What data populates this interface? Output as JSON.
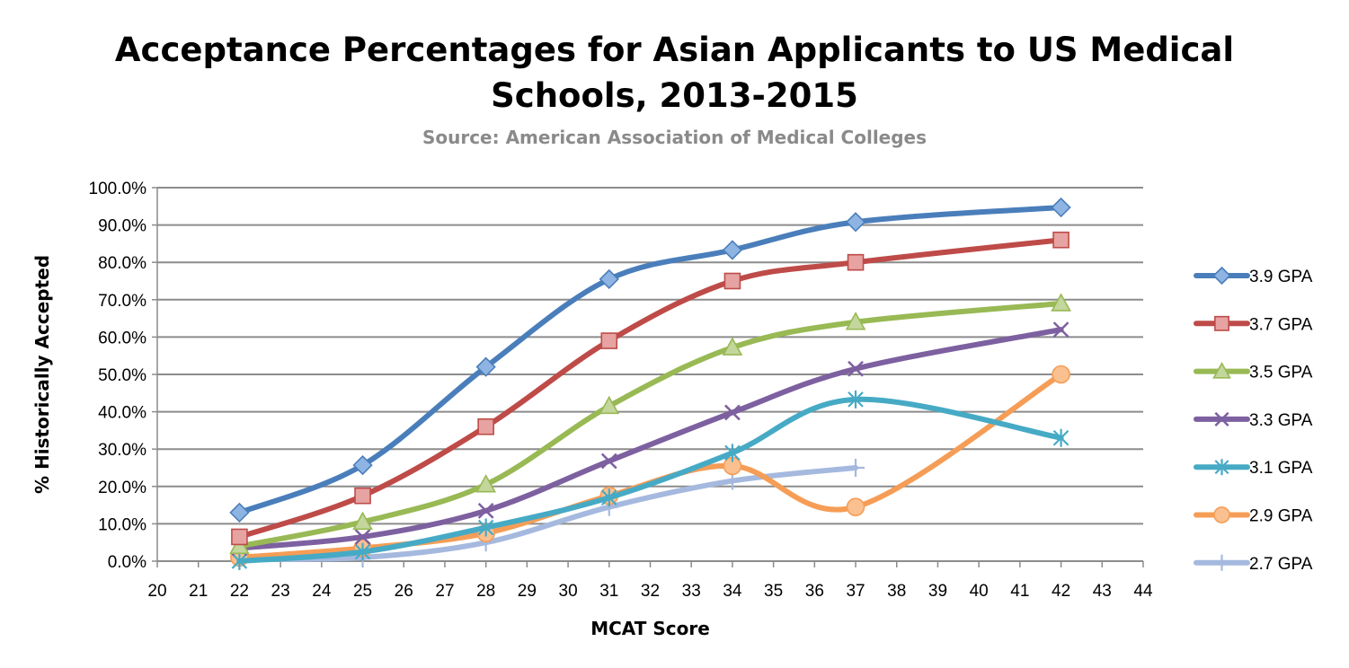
{
  "chart_data": {
    "type": "line",
    "title": "Acceptance Percentages for Asian Applicants to US Medical Schools, 2013-2015",
    "title_lines": [
      "Acceptance Percentages for Asian Applicants to US Medical",
      "Schools, 2013-2015"
    ],
    "subtitle": "Source: American Association of Medical Colleges",
    "xlabel": "MCAT Score",
    "ylabel": "% Historically Accepted",
    "xlim": [
      20,
      44
    ],
    "ylim": [
      0,
      100
    ],
    "x_ticks": [
      20,
      21,
      22,
      23,
      24,
      25,
      26,
      27,
      28,
      29,
      30,
      31,
      32,
      33,
      34,
      35,
      36,
      37,
      38,
      39,
      40,
      41,
      42,
      43,
      44
    ],
    "y_ticks": [
      0,
      10,
      20,
      30,
      40,
      50,
      60,
      70,
      80,
      90,
      100
    ],
    "y_tick_labels": [
      "0.0%",
      "10.0%",
      "20.0%",
      "30.0%",
      "40.0%",
      "50.0%",
      "60.0%",
      "70.0%",
      "80.0%",
      "90.0%",
      "100.0%"
    ],
    "grid": "horizontal",
    "legend_position": "right",
    "series": [
      {
        "name": "3.9 GPA",
        "color": "#4a7ebb",
        "fill": "#8eb4e3",
        "marker": "diamond",
        "x": [
          22,
          25,
          28,
          31,
          34,
          37,
          42
        ],
        "y": [
          13,
          25.7,
          52,
          75.5,
          83.3,
          90.8,
          94.7
        ]
      },
      {
        "name": "3.7 GPA",
        "color": "#be4b48",
        "fill": "#e6a3a1",
        "marker": "square",
        "x": [
          22,
          25,
          28,
          31,
          34,
          37,
          42
        ],
        "y": [
          6.5,
          17.5,
          36,
          59,
          75,
          80,
          86
        ]
      },
      {
        "name": "3.5 GPA",
        "color": "#98b954",
        "fill": "#c3d69b",
        "marker": "triangle",
        "x": [
          22,
          25,
          28,
          31,
          34,
          37,
          42
        ],
        "y": [
          4,
          10.5,
          20.5,
          41.5,
          57.2,
          64,
          69
        ]
      },
      {
        "name": "3.3 GPA",
        "color": "#7d60a0",
        "fill": "#7d60a0",
        "marker": "x",
        "x": [
          22,
          25,
          28,
          31,
          34,
          37,
          42
        ],
        "y": [
          3.5,
          6.5,
          13.5,
          26.8,
          39.8,
          51.5,
          62
        ]
      },
      {
        "name": "3.1 GPA",
        "color": "#46aac5",
        "fill": "#46aac5",
        "marker": "star",
        "x": [
          22,
          25,
          28,
          31,
          34,
          37,
          42
        ],
        "y": [
          0,
          2.5,
          9,
          17,
          29,
          43.3,
          33
        ]
      },
      {
        "name": "2.9 GPA",
        "color": "#f59d56",
        "fill": "#fac090",
        "marker": "circle",
        "x": [
          22,
          25,
          28,
          31,
          34,
          37,
          42
        ],
        "y": [
          1,
          3.5,
          7.5,
          17.5,
          25.5,
          14.5,
          50
        ]
      },
      {
        "name": "2.7 GPA",
        "color": "#a5b9df",
        "fill": "#a5b9df",
        "marker": "plus",
        "x": [
          22,
          25,
          28,
          31,
          34,
          37
        ],
        "y": [
          0.5,
          1,
          5,
          14.5,
          21.5,
          25
        ]
      }
    ]
  }
}
